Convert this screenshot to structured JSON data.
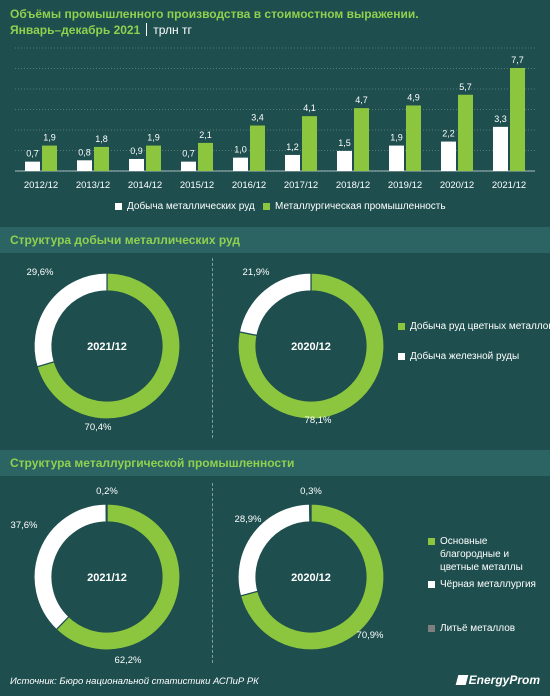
{
  "header": {
    "title": "Объёмы промышленного производства в стоимостном выражении.",
    "period": "Январь–декабрь 2021",
    "unit": "трлн тг"
  },
  "colors": {
    "green": "#8cc63f",
    "white": "#ffffff",
    "grey": "#7f7f7f",
    "background": "#1e4e4e"
  },
  "chart_data": [
    {
      "type": "bar",
      "categories": [
        "2012/12",
        "2013/12",
        "2014/12",
        "2015/12",
        "2016/12",
        "2017/12",
        "2018/12",
        "2019/12",
        "2020/12",
        "2021/12"
      ],
      "series": [
        {
          "name": "Добыча металлических руд",
          "color": "#ffffff",
          "values": [
            0.7,
            0.8,
            0.9,
            0.7,
            1.0,
            1.2,
            1.5,
            1.9,
            2.2,
            3.3
          ],
          "labels": [
            "0,7",
            "0,8",
            "0,9",
            "0,7",
            "1,0",
            "1,2",
            "1,5",
            "1,9",
            "2,2",
            "3,3"
          ]
        },
        {
          "name": "Металлургическая промышленность",
          "color": "#8cc63f",
          "values": [
            1.9,
            1.8,
            1.9,
            2.1,
            3.4,
            4.1,
            4.7,
            4.9,
            5.7,
            7.7
          ],
          "labels": [
            "1,9",
            "1,8",
            "1,9",
            "2,1",
            "3,4",
            "4,1",
            "4,7",
            "4,9",
            "5,7",
            "7,7"
          ]
        }
      ],
      "legend_position": "bottom"
    },
    {
      "type": "pie",
      "title": "Структура добычи металлических руд",
      "legend_position": "right",
      "legend": [
        "Добыча руд цветных металлов",
        "Добыча железной руды"
      ],
      "charts": [
        {
          "center_label": "2021/12",
          "slices": [
            {
              "name": "Добыча руд цветных металлов",
              "value": 70.4,
              "label": "70,4%",
              "color": "#8cc63f"
            },
            {
              "name": "Добыча железной руды",
              "value": 29.6,
              "label": "29,6%",
              "color": "#ffffff"
            }
          ]
        },
        {
          "center_label": "2020/12",
          "slices": [
            {
              "name": "Добыча руд цветных металлов",
              "value": 78.1,
              "label": "78,1%",
              "color": "#8cc63f"
            },
            {
              "name": "Добыча железной руды",
              "value": 21.9,
              "label": "21,9%",
              "color": "#ffffff"
            }
          ]
        }
      ]
    },
    {
      "type": "pie",
      "title": "Структура металлургической промышленности",
      "legend_position": "right",
      "legend": [
        "Основные благородные и цветные металлы",
        "Чёрная металлургия",
        "Литьё металлов"
      ],
      "charts": [
        {
          "center_label": "2021/12",
          "slices": [
            {
              "name": "Основные благородные и цветные металлы",
              "value": 62.2,
              "label": "62,2%",
              "color": "#8cc63f"
            },
            {
              "name": "Чёрная металлургия",
              "value": 37.6,
              "label": "37,6%",
              "color": "#ffffff"
            },
            {
              "name": "Литьё металлов",
              "value": 0.2,
              "label": "0,2%",
              "color": "#7f7f7f"
            }
          ]
        },
        {
          "center_label": "2020/12",
          "slices": [
            {
              "name": "Основные благородные и цветные металлы",
              "value": 70.9,
              "label": "70,9%",
              "color": "#8cc63f"
            },
            {
              "name": "Чёрная металлургия",
              "value": 28.9,
              "label": "28,9%",
              "color": "#ffffff"
            },
            {
              "name": "Литьё металлов",
              "value": 0.3,
              "label": "0,3%",
              "color": "#7f7f7f"
            }
          ]
        }
      ]
    }
  ],
  "footer": {
    "source": "Источник: Бюро национальной статистики АСПиР РК",
    "logo": "EnergyProm"
  }
}
